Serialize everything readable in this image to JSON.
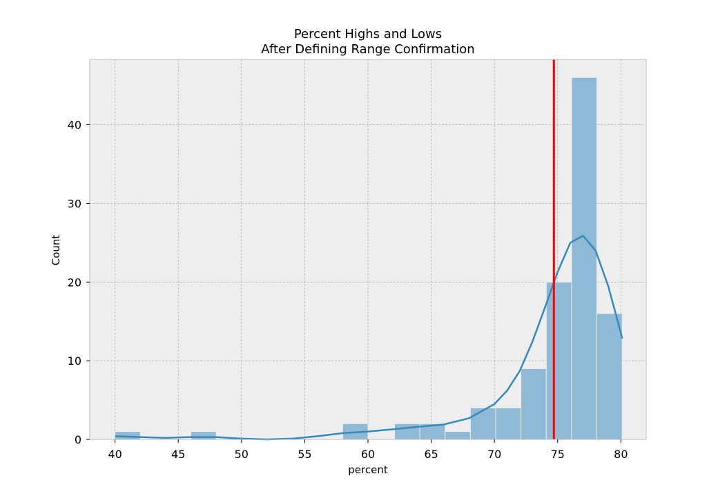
{
  "chart_data": {
    "type": "bar",
    "title_line1": "Percent Highs and Lows",
    "title_line2": "After Defining Range Confirmation",
    "xlabel": "percent",
    "ylabel": "Count",
    "xlim": [
      38,
      82
    ],
    "ylim": [
      0,
      48.3
    ],
    "xticks": [
      40,
      45,
      50,
      55,
      60,
      65,
      70,
      75,
      80
    ],
    "yticks": [
      0,
      10,
      20,
      30,
      40
    ],
    "grid": true,
    "bins": [
      {
        "x0": 40.0,
        "x1": 42.0,
        "count": 1
      },
      {
        "x0": 46.0,
        "x1": 48.0,
        "count": 1
      },
      {
        "x0": 58.0,
        "x1": 60.0,
        "count": 2
      },
      {
        "x0": 62.1,
        "x1": 64.1,
        "count": 2
      },
      {
        "x0": 64.1,
        "x1": 66.1,
        "count": 2
      },
      {
        "x0": 66.1,
        "x1": 68.1,
        "count": 1
      },
      {
        "x0": 68.1,
        "x1": 70.1,
        "count": 4
      },
      {
        "x0": 70.1,
        "x1": 72.1,
        "count": 4
      },
      {
        "x0": 72.1,
        "x1": 74.1,
        "count": 9
      },
      {
        "x0": 74.1,
        "x1": 76.1,
        "count": 20
      },
      {
        "x0": 76.1,
        "x1": 78.1,
        "count": 46
      },
      {
        "x0": 78.1,
        "x1": 80.1,
        "count": 16
      }
    ],
    "kde": [
      [
        40,
        0.4
      ],
      [
        42,
        0.3
      ],
      [
        44,
        0.2
      ],
      [
        46,
        0.3
      ],
      [
        48,
        0.3
      ],
      [
        50,
        0.1
      ],
      [
        52,
        0.0
      ],
      [
        54,
        0.1
      ],
      [
        56,
        0.4
      ],
      [
        58,
        0.8
      ],
      [
        60,
        1.0
      ],
      [
        62,
        1.3
      ],
      [
        64,
        1.6
      ],
      [
        66,
        1.9
      ],
      [
        68,
        2.7
      ],
      [
        70,
        4.5
      ],
      [
        71,
        6.2
      ],
      [
        72,
        8.7
      ],
      [
        73,
        12.4
      ],
      [
        74,
        16.8
      ],
      [
        75,
        21.3
      ],
      [
        76,
        25.0
      ],
      [
        77,
        25.9
      ],
      [
        78,
        24.0
      ],
      [
        79,
        19.5
      ],
      [
        80,
        13.5
      ],
      [
        80.1,
        12.8
      ]
    ],
    "vline": 74.7,
    "colors": {
      "bar": "#8fb9d4",
      "bar_edge": "#eeeeee",
      "kde": "#348abd",
      "vline": "#ff0000",
      "plot_bg": "#eeeeee",
      "grid": "#b0b0b0"
    }
  }
}
